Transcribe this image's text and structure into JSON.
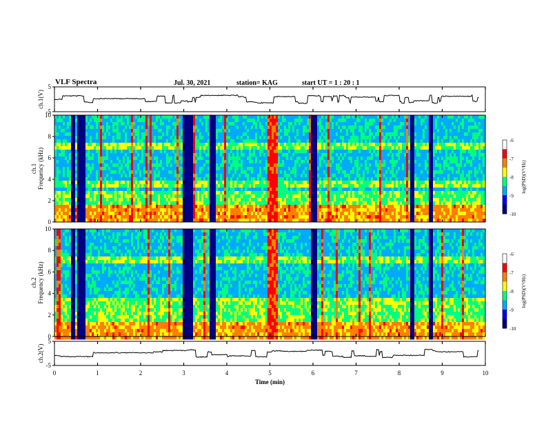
{
  "header": {
    "title": "VLF Spectra",
    "date": "Jul. 30, 2021",
    "station": "station= KAG",
    "start": "start  UT =   1 : 20 : 1"
  },
  "chart_data": {
    "type": "heatmap",
    "title": "VLF Spectra",
    "xlabel": "Time  (min)",
    "x_ticks": [
      "0",
      "1",
      "2",
      "3",
      "4",
      "5",
      "6",
      "7",
      "8",
      "9",
      "10"
    ],
    "xlim": [
      0,
      10
    ],
    "panels": [
      {
        "name": "waveform-ch1",
        "ylabel": "ch.1(V)",
        "ylim": [
          -5,
          5
        ],
        "y_ticks": [
          "5",
          "-5"
        ]
      },
      {
        "name": "spectrogram-ch1",
        "ylabel": "ch.1\nFrequency (kHz)",
        "ylim": [
          0,
          10
        ],
        "y_ticks": [
          "0",
          "2",
          "4",
          "6",
          "8",
          "10"
        ],
        "colorbar": {
          "label": "log(PSD)(V²/Hz)",
          "range": [
            -10,
            -6
          ],
          "ticks": [
            "-6",
            "-7",
            "-8",
            "-9",
            "-10"
          ]
        }
      },
      {
        "name": "spectrogram-ch2",
        "ylabel": "ch.2\nFrequency (kHz)",
        "ylim": [
          0,
          10
        ],
        "y_ticks": [
          "0",
          "2",
          "4",
          "6",
          "8",
          "10"
        ],
        "colorbar": {
          "label": "log(PSD)(V²/Hz)",
          "range": [
            -10,
            -6
          ],
          "ticks": [
            "-6",
            "-7",
            "-8",
            "-9",
            "-10"
          ]
        }
      },
      {
        "name": "waveform-ch2",
        "ylabel": "ch.2(V)",
        "ylim": [
          -5,
          5
        ],
        "y_ticks": [
          "5",
          "-5"
        ]
      }
    ],
    "colormap": [
      "#000080",
      "#0000ff",
      "#00aaff",
      "#00ff80",
      "#ffff00",
      "#ff8000",
      "#ff0000",
      "#ffffff"
    ],
    "dark_intervals_min": [
      [
        0.38,
        0.48
      ],
      [
        0.55,
        0.7
      ],
      [
        3.0,
        3.2
      ],
      [
        3.6,
        3.75
      ],
      [
        5.95,
        6.1
      ],
      [
        8.25,
        8.35
      ],
      [
        8.7,
        8.8
      ]
    ],
    "hiss_band_khz": [
      3.5,
      7.5
    ]
  }
}
